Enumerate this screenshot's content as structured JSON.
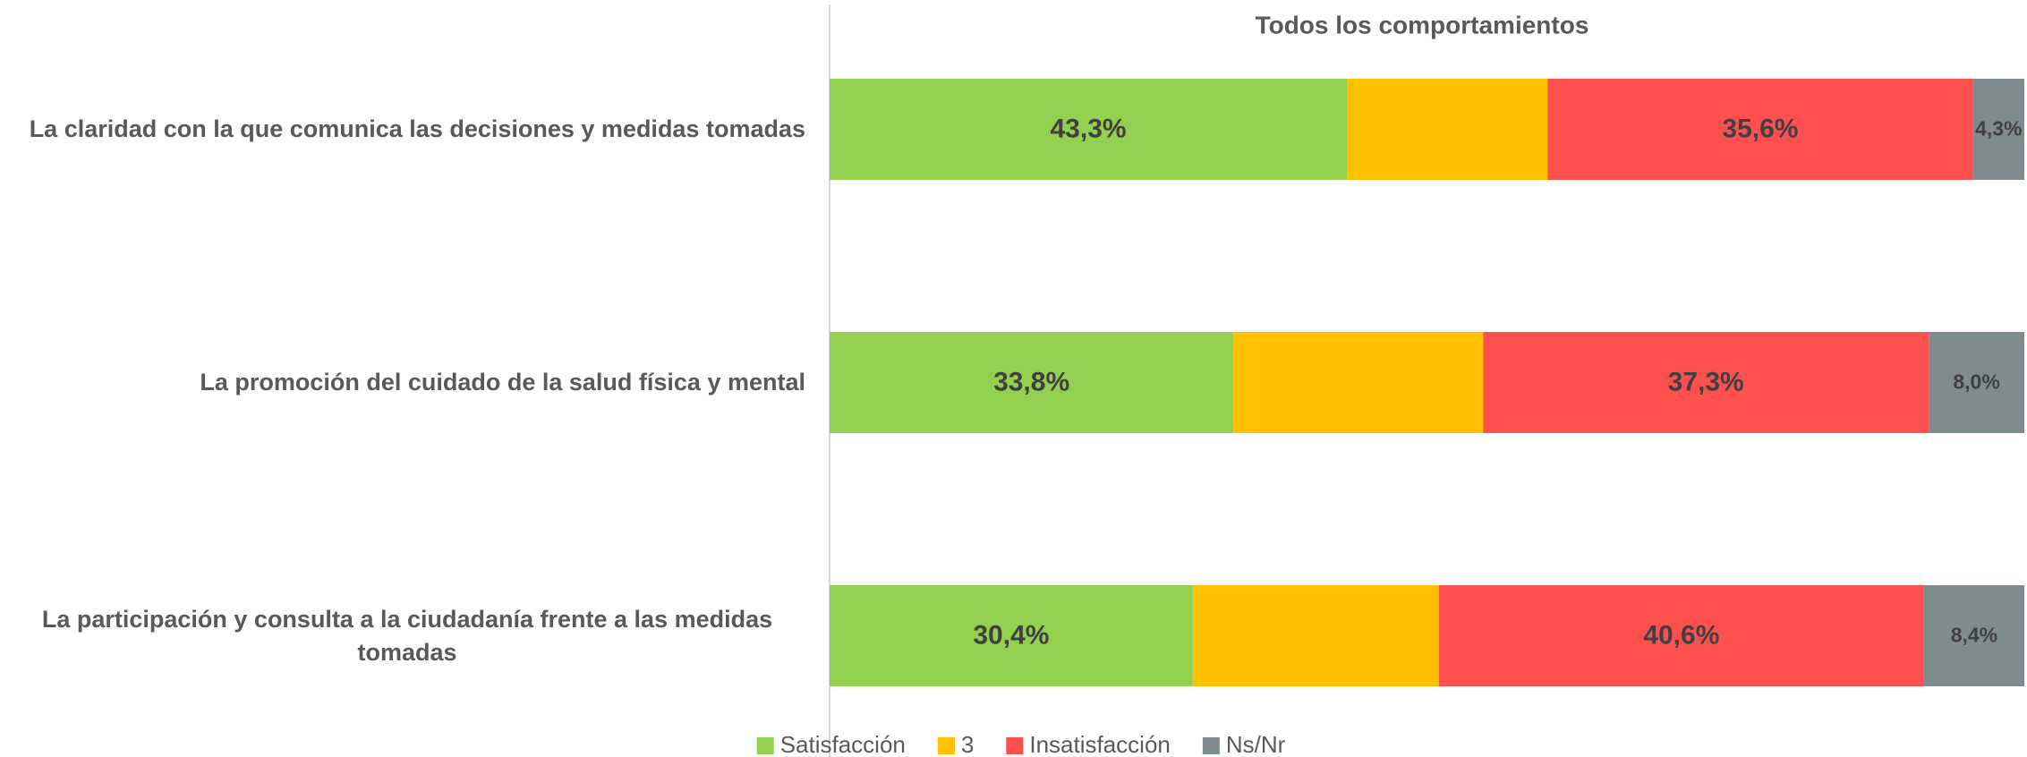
{
  "chart_data": {
    "type": "stacked_barh",
    "title": "Todos los comportamientos",
    "categories": [
      "La claridad con la que comunica las decisiones y medidas tomadas",
      "La promoción del cuidado de la salud física y mental",
      "La participación y consulta a la ciudadanía frente a las medidas tomadas"
    ],
    "series": [
      {
        "name": "Satisfacción",
        "color": "#92d050",
        "values": [
          43.3,
          33.8,
          30.4
        ],
        "value_labels": [
          "43,3%",
          "33,8%",
          "30,4%"
        ]
      },
      {
        "name": "3",
        "color": "#ffc000",
        "values": [
          16.8,
          20.9,
          20.6
        ]
      },
      {
        "name": "Insatisfacción",
        "color": "#ff5050",
        "values": [
          35.6,
          37.3,
          40.6
        ],
        "value_labels": [
          "35,6%",
          "37,3%",
          "40,6%"
        ]
      },
      {
        "name": "Ns/Nr",
        "color": "#7f8c8d",
        "values": [
          4.3,
          8.0,
          8.4
        ],
        "value_labels": [
          "4,3%",
          "8,0%",
          "8,4%"
        ]
      }
    ],
    "xlim": [
      0,
      100
    ],
    "legend": "bottom"
  }
}
